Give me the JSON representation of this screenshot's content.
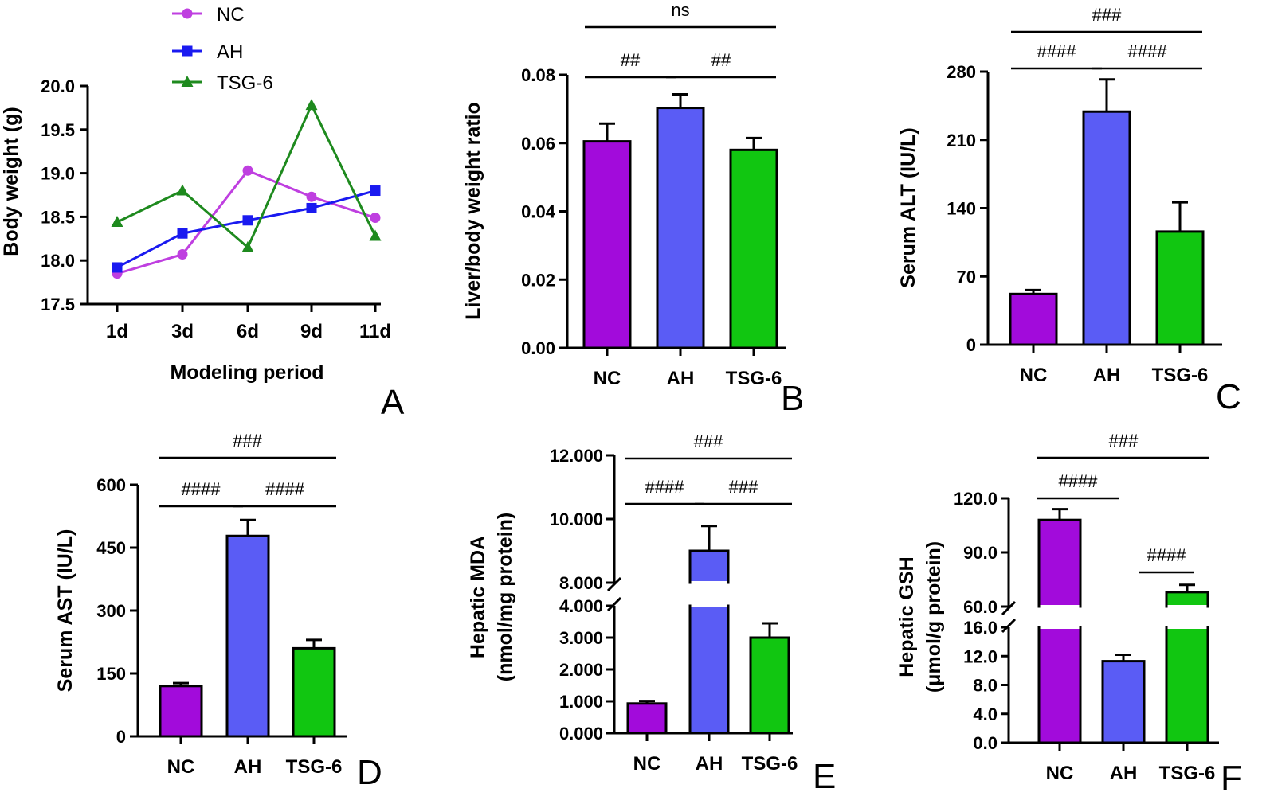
{
  "colors": {
    "NC": "#a20bdb",
    "AH": "#5a5cf5",
    "TSG6": "#11c611",
    "lineNC": "#bf3fe0",
    "lineAH": "#1a1af0",
    "lineTSG6": "#1e8a1e",
    "bar_outline": "#000000"
  },
  "chart_data": [
    {
      "id": "A",
      "type": "line",
      "panel_label": "A",
      "xlabel": "Modeling period",
      "ylabel": "Body weight (g)",
      "categories": [
        "1d",
        "3d",
        "6d",
        "9d",
        "11d"
      ],
      "ylim": [
        17.5,
        20.0
      ],
      "yticks": [
        "17.5",
        "18.0",
        "18.5",
        "19.0",
        "19.5",
        "20.0"
      ],
      "series": [
        {
          "name": "NC",
          "marker": "circle",
          "values": [
            17.85,
            18.07,
            19.03,
            18.73,
            18.49
          ]
        },
        {
          "name": "AH",
          "marker": "square",
          "values": [
            17.92,
            18.31,
            18.46,
            18.6,
            18.8
          ]
        },
        {
          "name": "TSG-6",
          "marker": "triangle",
          "values": [
            18.44,
            18.8,
            18.15,
            19.78,
            18.28
          ]
        }
      ]
    },
    {
      "id": "B",
      "type": "bar",
      "panel_label": "B",
      "ylabel": "Liver/body weight ratio",
      "categories": [
        "NC",
        "AH",
        "TSG-6"
      ],
      "values": [
        0.0605,
        0.0703,
        0.058
      ],
      "errors": [
        0.0052,
        0.004,
        0.0035
      ],
      "ylim": [
        0,
        0.08
      ],
      "yticks": [
        "0.00",
        "0.02",
        "0.04",
        "0.06",
        "0.08"
      ],
      "significance": [
        {
          "label": "ns",
          "from": 0,
          "to": 2,
          "level": 2
        },
        {
          "label": "##",
          "from": 0,
          "to": 1,
          "level": 1
        },
        {
          "label": "##",
          "from": 1,
          "to": 2,
          "level": 1
        }
      ]
    },
    {
      "id": "C",
      "type": "bar",
      "panel_label": "C",
      "ylabel": "Serum ALT (IU/L)",
      "categories": [
        "NC",
        "AH",
        "TSG-6"
      ],
      "values": [
        52,
        239,
        116
      ],
      "errors": [
        4,
        33,
        30
      ],
      "ylim": [
        0,
        280
      ],
      "yticks": [
        "0",
        "70",
        "140",
        "210",
        "280"
      ],
      "significance": [
        {
          "label": "###",
          "from": 0,
          "to": 2,
          "level": 2
        },
        {
          "label": "####",
          "from": 0,
          "to": 1,
          "level": 1
        },
        {
          "label": "####",
          "from": 1,
          "to": 2,
          "level": 1
        }
      ]
    },
    {
      "id": "D",
      "type": "bar",
      "panel_label": "D",
      "ylabel": "Serum AST (IU/L)",
      "categories": [
        "NC",
        "AH",
        "TSG-6"
      ],
      "values": [
        120,
        478,
        210
      ],
      "errors": [
        7,
        38,
        20
      ],
      "ylim": [
        0,
        600
      ],
      "yticks": [
        "0",
        "150",
        "300",
        "450",
        "600"
      ],
      "significance": [
        {
          "label": "###",
          "from": 0,
          "to": 2,
          "level": 2
        },
        {
          "label": "####",
          "from": 0,
          "to": 1,
          "level": 1
        },
        {
          "label": "####",
          "from": 1,
          "to": 2,
          "level": 1
        }
      ]
    },
    {
      "id": "E",
      "type": "bar",
      "panel_label": "E",
      "ylabel": "Hepatic MDA",
      "ylabel2": "(nmol/mg protein)",
      "categories": [
        "NC",
        "AH",
        "TSG-6"
      ],
      "values": [
        0.93,
        9.0,
        3.0
      ],
      "errors": [
        0.08,
        0.78,
        0.45
      ],
      "broken_axis": {
        "lower": [
          0,
          4
        ],
        "upper": [
          8,
          12
        ]
      },
      "yticks_lower": [
        "0.000",
        "1.000",
        "2.000",
        "3.000",
        "4.000"
      ],
      "yticks_upper": [
        "8.000",
        "10.000",
        "12.000"
      ],
      "significance": [
        {
          "label": "###",
          "from": 0,
          "to": 2,
          "level": 2
        },
        {
          "label": "####",
          "from": 0,
          "to": 1,
          "level": 1
        },
        {
          "label": "###",
          "from": 1,
          "to": 2,
          "level": 1
        }
      ]
    },
    {
      "id": "F",
      "type": "bar",
      "panel_label": "F",
      "ylabel": "Hepatic GSH",
      "ylabel2": "(μmol/g protein)",
      "categories": [
        "NC",
        "AH",
        "TSG-6"
      ],
      "values": [
        108,
        11.3,
        68
      ],
      "errors": [
        6,
        0.9,
        4
      ],
      "broken_axis": {
        "lower": [
          0,
          16
        ],
        "upper": [
          60,
          120
        ]
      },
      "yticks_lower": [
        "0.0",
        "4.0",
        "8.0",
        "12.0",
        "16.0"
      ],
      "yticks_upper": [
        "60.0",
        "90.0",
        "120.0"
      ],
      "significance": [
        {
          "label": "###",
          "from": 0,
          "to": 2,
          "level": 2
        },
        {
          "label": "####",
          "from": 0,
          "to": 1,
          "level": 1
        },
        {
          "label": "####",
          "from": 1,
          "to": 2,
          "level": 0
        }
      ]
    }
  ]
}
